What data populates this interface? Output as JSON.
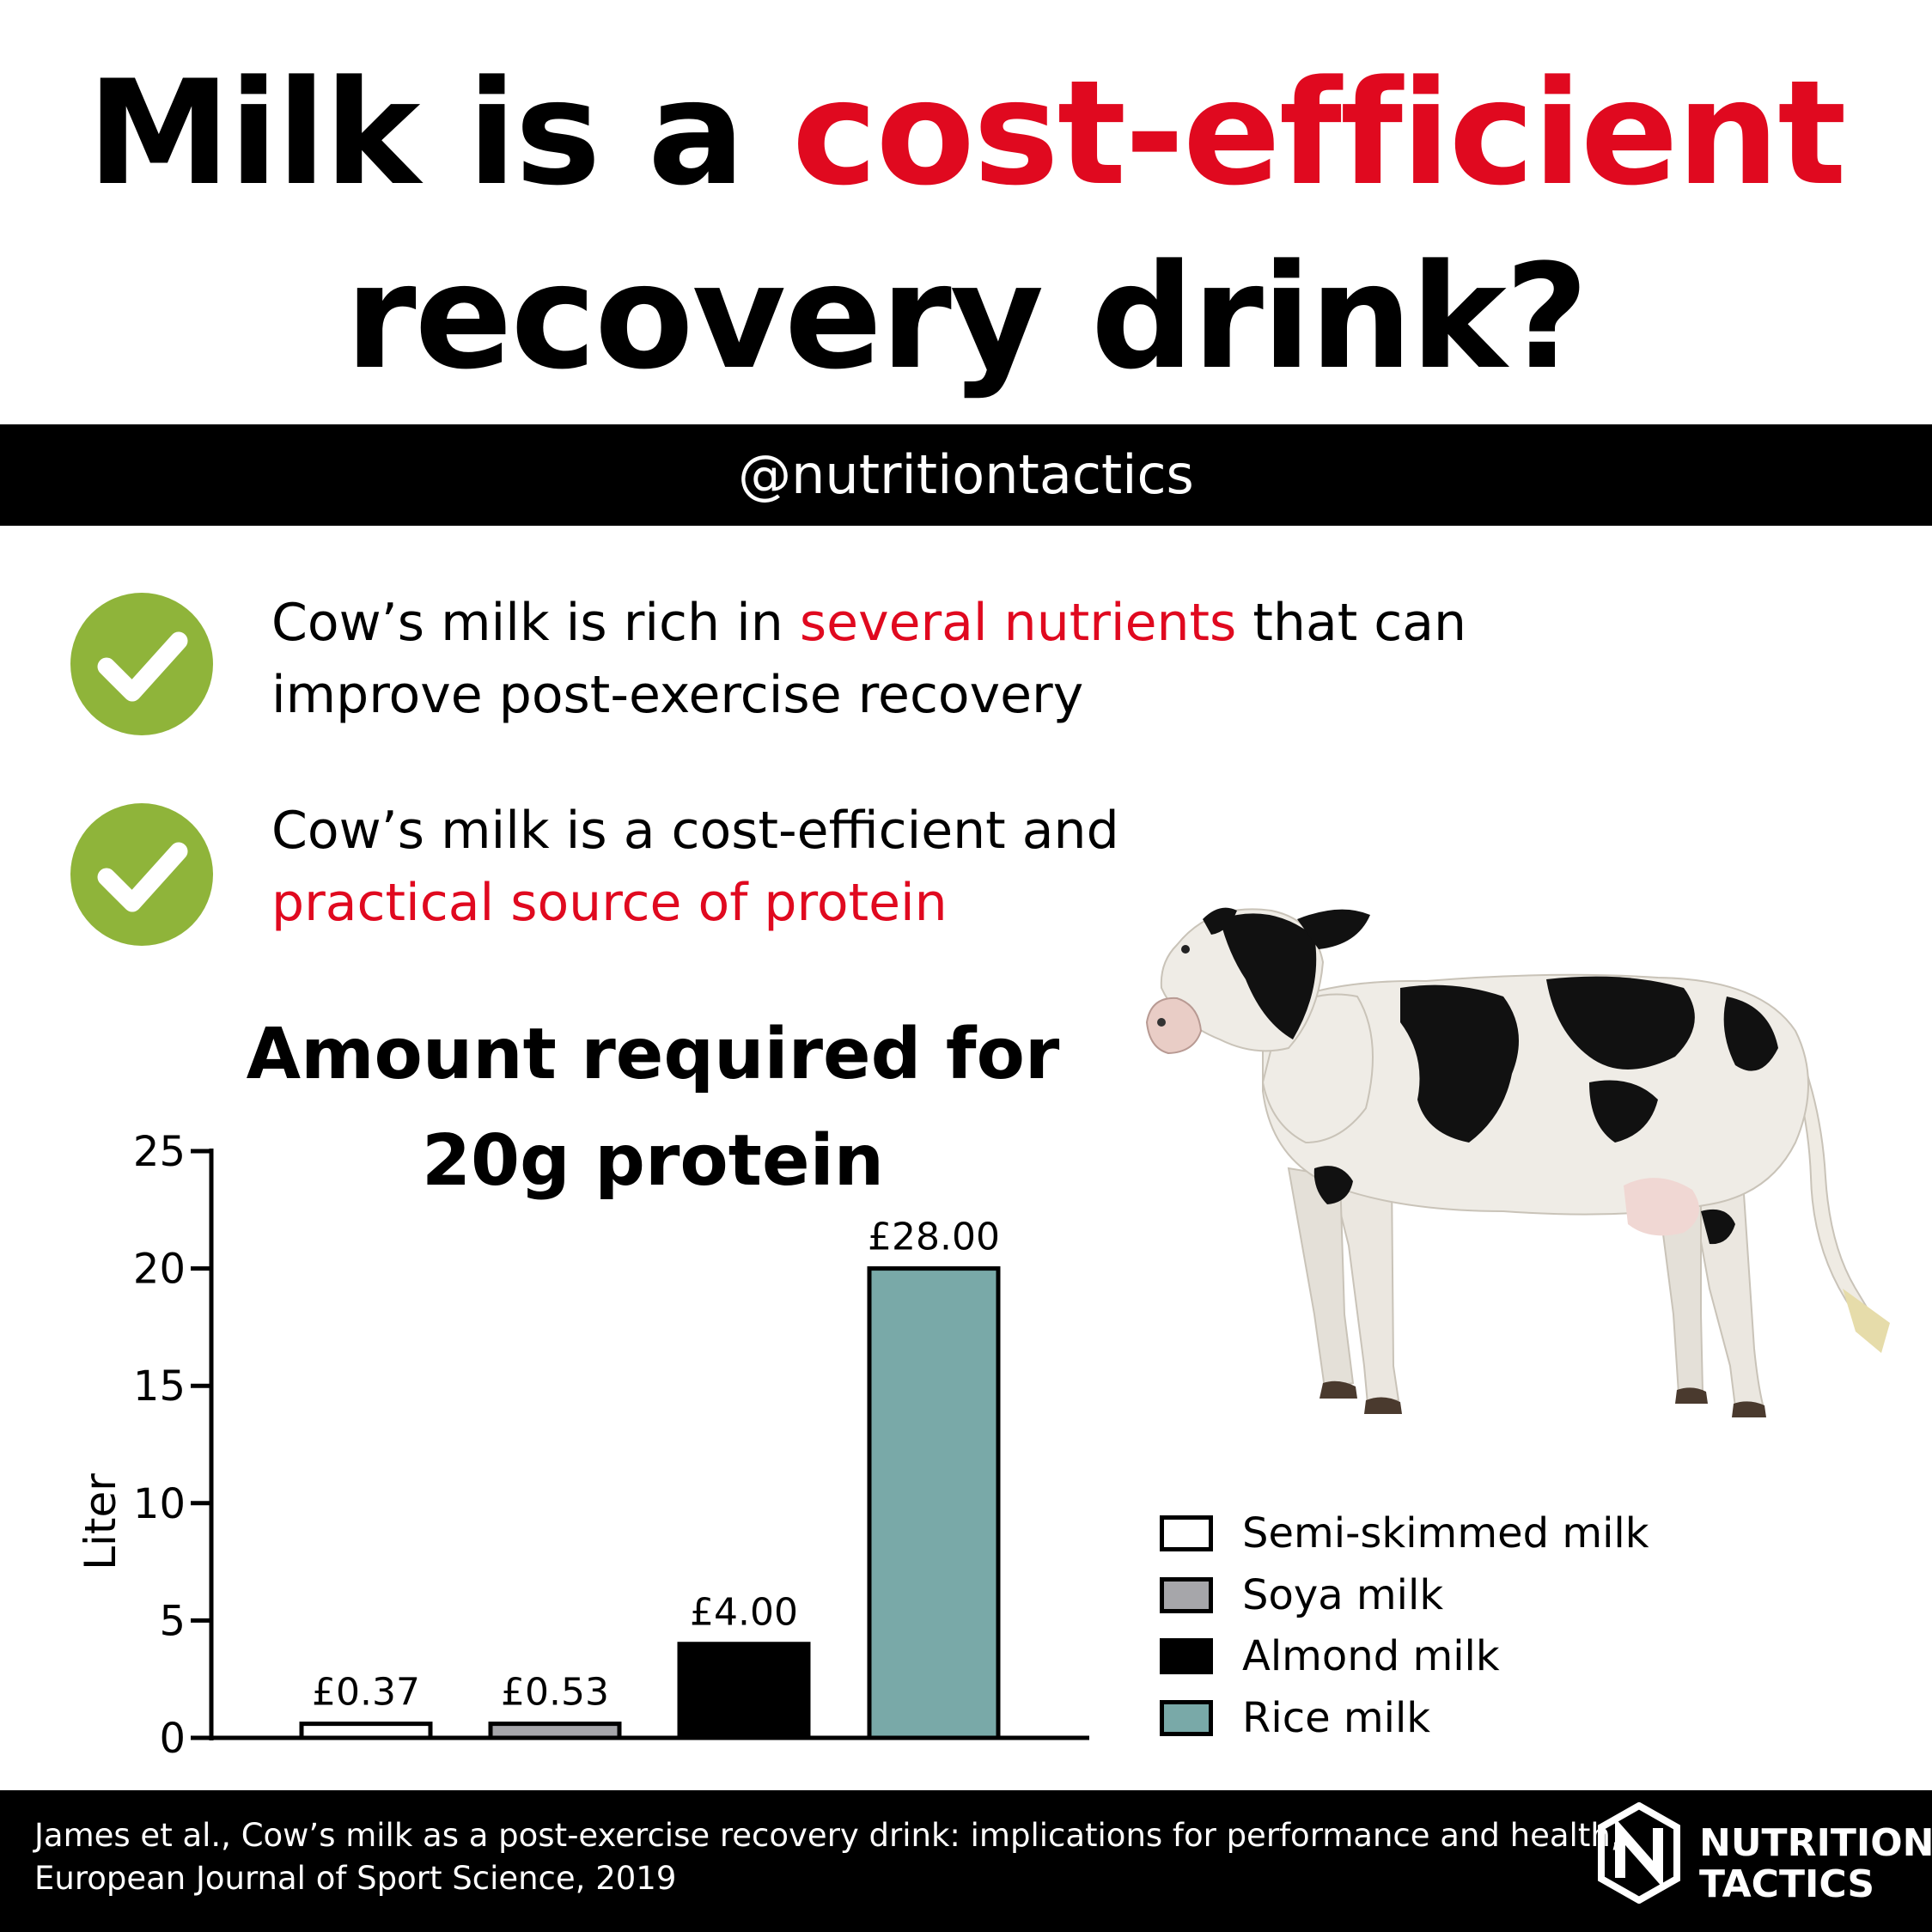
{
  "title": {
    "part1": "Milk is a ",
    "accent": "cost-efficient",
    "line2": "recovery drink?"
  },
  "handle": "@nutritiontactics",
  "bullets": [
    {
      "pre": "Cow’s milk is rich in ",
      "accent": "several nutrients",
      "post": " that can",
      "line2": "improve post-exercise recovery"
    },
    {
      "line1": "Cow’s milk is a cost-efficient and",
      "accent": "practical source of protein"
    }
  ],
  "colors": {
    "accent": "#e0091f",
    "check": "#8fb43a",
    "black": "#000000"
  },
  "chart_data": {
    "type": "bar",
    "title": "Amount required for 20g protein",
    "title_lines": [
      "Amount required for",
      "20g protein"
    ],
    "categories": [
      "Semi-skimmed milk",
      "Soya milk",
      "Almond milk",
      "Rice milk"
    ],
    "values": [
      0.6,
      0.6,
      4,
      20
    ],
    "data_labels": [
      "£0.37",
      "£0.53",
      "£4.00",
      "£28.00"
    ],
    "colors": [
      "#ffffff",
      "#a6a6aa",
      "#000000",
      "#79a9a8"
    ],
    "ylabel": "Liter",
    "xlabel": "",
    "ylim": [
      0,
      25
    ],
    "yticks": [
      0,
      5,
      10,
      15,
      20,
      25
    ],
    "legend": "right",
    "grid": false
  },
  "citation": {
    "line1": "James et al., Cow’s milk as a post-exercise recovery drink: implications for performance and health,",
    "line2": "European Journal of Sport Science, 2019"
  },
  "brand": {
    "line1": "NUTRITION",
    "line2": "TACTICS"
  },
  "icons": [
    "check-icon",
    "cow-illustration",
    "brand-logo-icon"
  ]
}
